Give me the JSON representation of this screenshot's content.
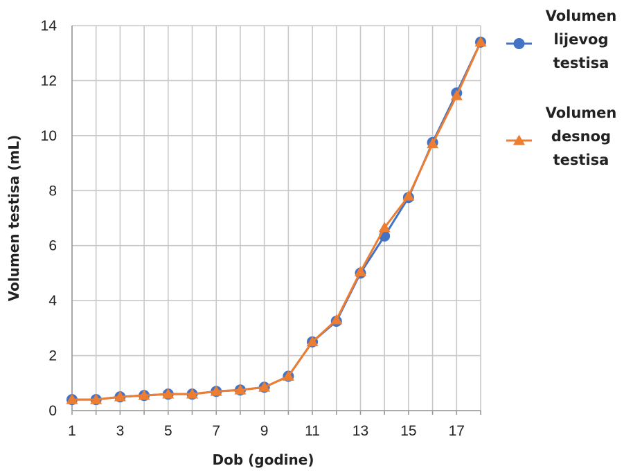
{
  "chart_data": {
    "type": "line",
    "title": "",
    "xlabel": "Dob (godine)",
    "ylabel": "Volumen testisa (mL)",
    "x": [
      1,
      2,
      3,
      4,
      5,
      6,
      7,
      8,
      9,
      10,
      11,
      12,
      13,
      14,
      15,
      16,
      17,
      18
    ],
    "xlim": [
      1,
      18
    ],
    "ylim": [
      0,
      14
    ],
    "x_tick_labels": [
      "1",
      "3",
      "5",
      "7",
      "9",
      "11",
      "13",
      "15",
      "17"
    ],
    "y_tick_labels": [
      "0",
      "2",
      "4",
      "6",
      "8",
      "10",
      "12",
      "14"
    ],
    "grid": true,
    "legend_position": "right",
    "series": [
      {
        "name": "Volumen lijevog testisa",
        "legend_lines": [
          "Volumen",
          "lijevog",
          "testisa"
        ],
        "marker": "circle",
        "color": "#4472C4",
        "values": [
          0.4,
          0.4,
          0.5,
          0.55,
          0.6,
          0.6,
          0.7,
          0.75,
          0.85,
          1.25,
          2.5,
          3.25,
          5.0,
          6.35,
          7.75,
          9.75,
          11.55,
          13.4
        ]
      },
      {
        "name": "Volumen desnog testisa",
        "legend_lines": [
          "Volumen",
          "desnog",
          "testisa"
        ],
        "marker": "triangle",
        "color": "#ED7D31",
        "values": [
          0.4,
          0.4,
          0.5,
          0.55,
          0.6,
          0.6,
          0.7,
          0.75,
          0.85,
          1.25,
          2.5,
          3.3,
          5.05,
          6.65,
          7.8,
          9.7,
          11.45,
          13.4
        ]
      }
    ]
  }
}
